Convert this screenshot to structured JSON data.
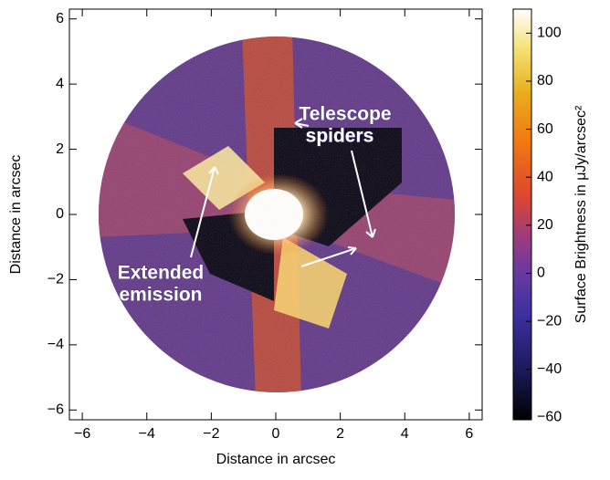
{
  "chart_data": {
    "type": "image",
    "xlabel": "Distance in arcsec",
    "ylabel": "Distance in arcsec",
    "xlim": [
      -6.4,
      6.4
    ],
    "ylim": [
      -6.3,
      6.3
    ],
    "xticks": [
      {
        "value": -6,
        "label": "−6"
      },
      {
        "value": -4,
        "label": "−4"
      },
      {
        "value": -2,
        "label": "−2"
      },
      0,
      2,
      4,
      6
    ],
    "yticks": [
      {
        "value": -6,
        "label": "−6"
      },
      {
        "value": -4,
        "label": "−4"
      },
      {
        "value": -2,
        "label": "−2"
      },
      0,
      2,
      4,
      6
    ],
    "colorbar": {
      "label": "Surface Brightness in μJy/arcsec²",
      "clim": [
        -61,
        110
      ],
      "ticks": [
        {
          "value": -60,
          "label": "−60"
        },
        {
          "value": -40,
          "label": "−40"
        },
        {
          "value": -20,
          "label": "−20"
        },
        0,
        20,
        40,
        60,
        80,
        100
      ]
    },
    "annotations": [
      {
        "lines": [
          "Telescope",
          "spiders"
        ]
      },
      {
        "lines": [
          "Extended",
          "emission"
        ]
      }
    ]
  }
}
